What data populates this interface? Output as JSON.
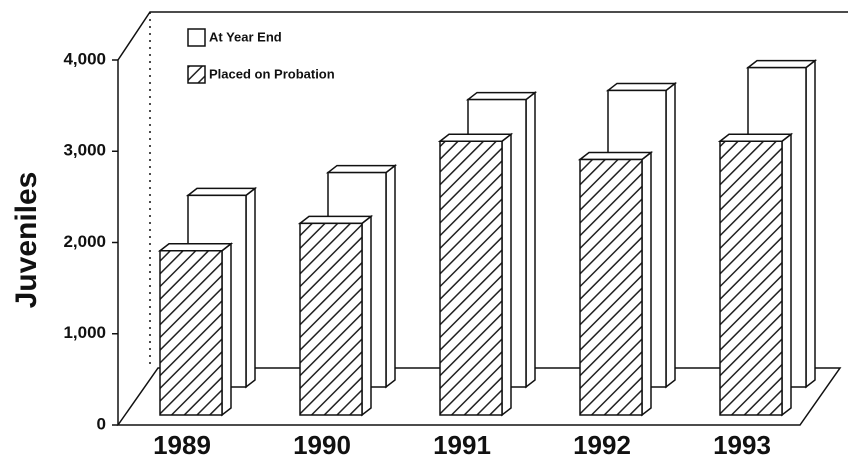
{
  "chart_data": {
    "type": "bar3d",
    "y_axis_label": "Juveniles",
    "categories": [
      "1989",
      "1990",
      "1991",
      "1992",
      "1993"
    ],
    "series": [
      {
        "name": "At Year End",
        "color": "#ffffff",
        "values": [
          2100,
          2350,
          3150,
          3250,
          3500
        ]
      },
      {
        "name": "Placed on Probation",
        "color": "hatch",
        "values": [
          1800,
          2100,
          3000,
          2800,
          3000
        ]
      }
    ],
    "ylim": [
      0,
      4000
    ],
    "yticks": [
      0,
      {
        "value": 1000,
        "label": "1,000"
      },
      {
        "value": 2000,
        "label": "2,000"
      },
      {
        "value": 3000,
        "label": "3,000"
      },
      {
        "value": 4000,
        "label": "4,000"
      }
    ]
  }
}
